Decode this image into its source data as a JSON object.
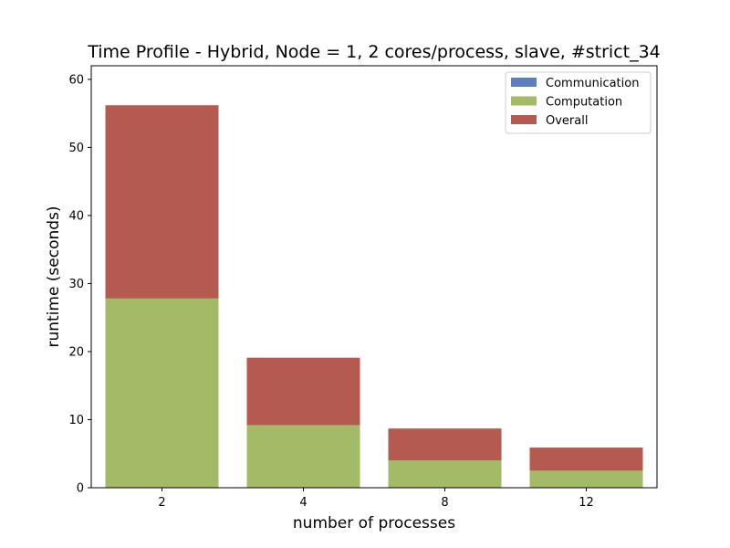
{
  "chart_data": {
    "type": "bar",
    "stacked": true,
    "title": "Time Profile - Hybrid, Node = 1, 2 cores/process, slave, #strict_34",
    "xlabel": "number of processes",
    "ylabel": "runtime (seconds)",
    "categories": [
      "2",
      "4",
      "8",
      "12"
    ],
    "ylim": [
      0,
      62
    ],
    "yticks": [
      0,
      10,
      20,
      30,
      40,
      50,
      60
    ],
    "legend_position": "top-right",
    "series": [
      {
        "name": "Communication",
        "color": "#5b80bd",
        "values": [
          0.0,
          0.0,
          0.0,
          0.0
        ]
      },
      {
        "name": "Computation",
        "color": "#a3bb67",
        "values": [
          27.8,
          9.2,
          4.0,
          2.5
        ]
      },
      {
        "name": "Overall",
        "color": "#b45a51",
        "values": [
          28.4,
          9.9,
          4.7,
          3.4
        ]
      }
    ]
  }
}
